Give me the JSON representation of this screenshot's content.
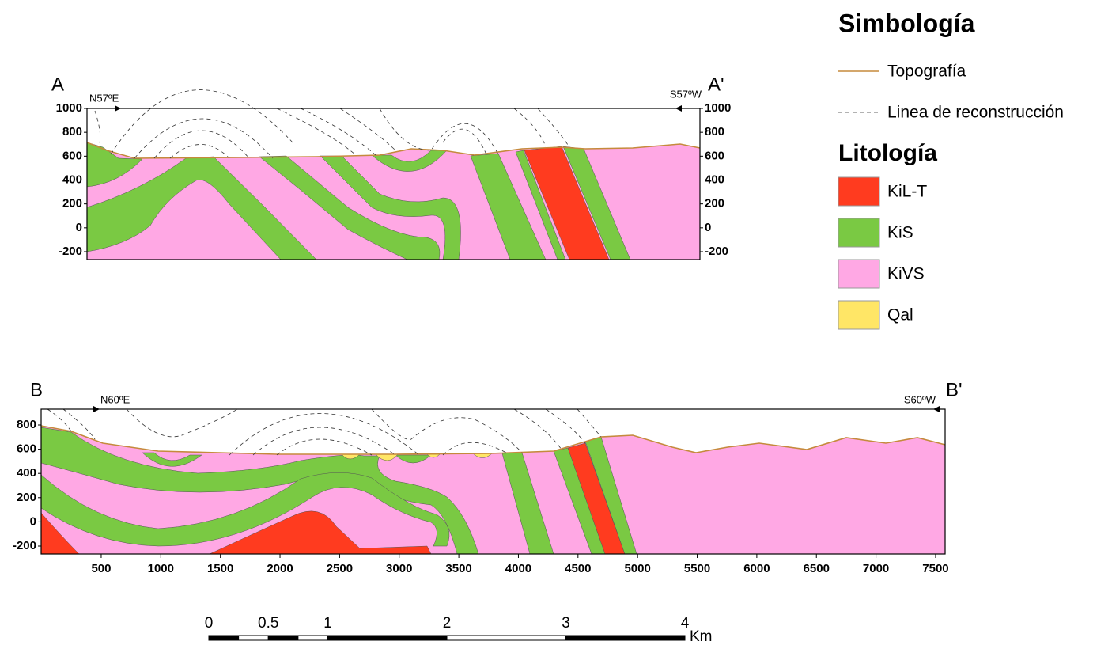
{
  "legend": {
    "title": "Simbología",
    "symbols": [
      {
        "label": "Topografía"
      },
      {
        "label": "Linea de reconstrucción"
      }
    ],
    "lithology_title": "Litología",
    "units": [
      {
        "label": "KiL-T",
        "color": "#ff3b1f"
      },
      {
        "label": "KiS",
        "color": "#7ac943"
      },
      {
        "label": "KiVS",
        "color": "#ffa8e4"
      },
      {
        "label": "Qal",
        "color": "#ffe666"
      }
    ]
  },
  "sections": [
    {
      "start": "A",
      "end": "A'",
      "start_bearing": "N57ºE",
      "end_bearing": "S57ºW",
      "yticks": [
        1000,
        800,
        600,
        400,
        200,
        0,
        -200
      ]
    },
    {
      "start": "B",
      "end": "B'",
      "start_bearing": "N60ºE",
      "end_bearing": "S60ºW",
      "yticks": [
        800,
        600,
        400,
        200,
        0,
        -200
      ],
      "xticks": [
        500,
        1000,
        1500,
        2000,
        2500,
        3000,
        3500,
        4000,
        4500,
        5000,
        5500,
        6000,
        6500,
        7000,
        7500
      ]
    }
  ],
  "scale_bar": {
    "ticks": [
      0,
      0.5,
      1,
      2,
      3,
      4
    ],
    "unit": "Km"
  }
}
